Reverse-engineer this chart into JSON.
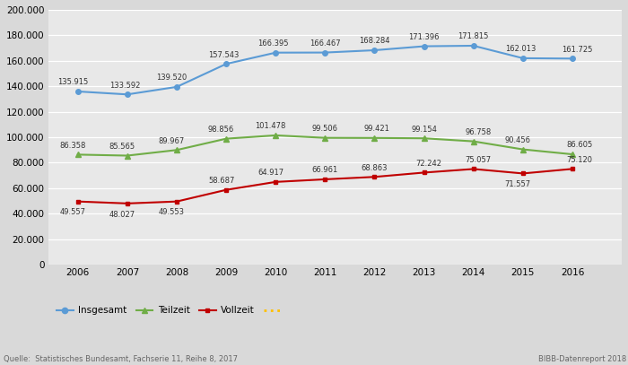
{
  "years": [
    2006,
    2007,
    2008,
    2009,
    2010,
    2011,
    2012,
    2013,
    2014,
    2015,
    2016
  ],
  "insgesamt": [
    135915,
    133592,
    139520,
    157543,
    166395,
    166467,
    168284,
    171396,
    171815,
    162013,
    161725
  ],
  "teilzeit": [
    86358,
    85565,
    89967,
    98856,
    101478,
    99506,
    99421,
    99154,
    96758,
    90456,
    86605
  ],
  "vollzeit": [
    49557,
    48027,
    49553,
    58687,
    64917,
    66961,
    68863,
    72242,
    75057,
    71557,
    75120
  ],
  "insgesamt_color": "#5B9BD5",
  "teilzeit_color": "#70AD47",
  "vollzeit_color": "#C00000",
  "dotted_color": "#FFC000",
  "bg_color": "#D9D9D9",
  "plot_bg_color": "#E8E8E8",
  "ylim": [
    0,
    200000
  ],
  "yticks": [
    0,
    20000,
    40000,
    60000,
    80000,
    100000,
    120000,
    140000,
    160000,
    180000,
    200000
  ],
  "ytick_labels": [
    "0",
    "20.000",
    "40.000",
    "60.000",
    "80.000",
    "100.000",
    "120.000",
    "140.000",
    "160.000",
    "180.000",
    "200.000"
  ],
  "source_text": "Quelle:  Statistisches Bundesamt, Fachserie 11, Reihe 8, 2017",
  "bibb_text": "BIBB-Datenreport 2018",
  "legend_insgesamt": "Insgesamt",
  "legend_teilzeit": "Teilzeit",
  "legend_vollzeit": "Vollzeit"
}
